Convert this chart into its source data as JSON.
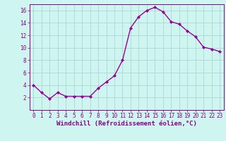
{
  "hours": [
    0,
    1,
    2,
    3,
    4,
    5,
    6,
    7,
    8,
    9,
    10,
    11,
    12,
    13,
    14,
    15,
    16,
    17,
    18,
    19,
    20,
    21,
    22,
    23
  ],
  "values": [
    4.0,
    2.8,
    1.8,
    2.8,
    2.2,
    2.2,
    2.2,
    2.2,
    3.5,
    4.5,
    5.5,
    8.0,
    13.2,
    15.0,
    16.0,
    16.5,
    15.8,
    14.2,
    13.8,
    12.7,
    11.8,
    10.1,
    9.8,
    9.4
  ],
  "line_color": "#990099",
  "marker": "D",
  "marker_size": 2.2,
  "bg_color": "#cef5f0",
  "grid_color": "#aad8d3",
  "xlabel": "Windchill (Refroidissement éolien,°C)",
  "xlim_min": -0.5,
  "xlim_max": 23.5,
  "ylim": [
    0,
    17
  ],
  "yticks": [
    2,
    4,
    6,
    8,
    10,
    12,
    14,
    16
  ],
  "xticks": [
    0,
    1,
    2,
    3,
    4,
    5,
    6,
    7,
    8,
    9,
    10,
    11,
    12,
    13,
    14,
    15,
    16,
    17,
    18,
    19,
    20,
    21,
    22,
    23
  ],
  "tick_color": "#880088",
  "tick_fontsize": 5.5,
  "xlabel_fontsize": 6.5,
  "line_width": 1.0
}
